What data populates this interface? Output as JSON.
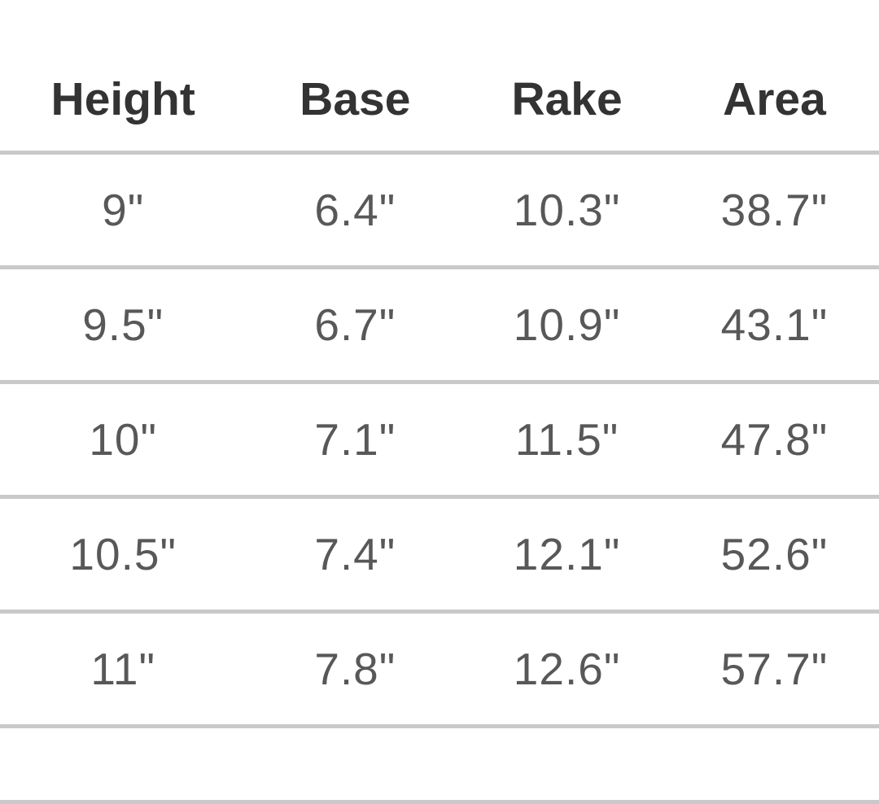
{
  "chart_data": {
    "type": "table",
    "title": "",
    "columns": [
      "Height",
      "Base",
      "Rake",
      "Area"
    ],
    "rows": [
      [
        "9\"",
        "6.4\"",
        "10.3\"",
        "38.7\""
      ],
      [
        "9.5\"",
        "6.7\"",
        "10.9\"",
        "43.1\""
      ],
      [
        "10\"",
        "7.1\"",
        "11.5\"",
        "47.8\""
      ],
      [
        "10.5\"",
        "7.4\"",
        "12.1\"",
        "52.6\""
      ],
      [
        "11\"",
        "7.8\"",
        "12.6\"",
        "57.7\""
      ]
    ],
    "units": "inches",
    "layout": {
      "grid": "horizontal-dividers-only",
      "trailing_empty_row": true
    },
    "colors": {
      "header_text": "#333333",
      "data_text": "#58585a",
      "divider": "#c9c9c9",
      "background": "#ffffff"
    }
  }
}
